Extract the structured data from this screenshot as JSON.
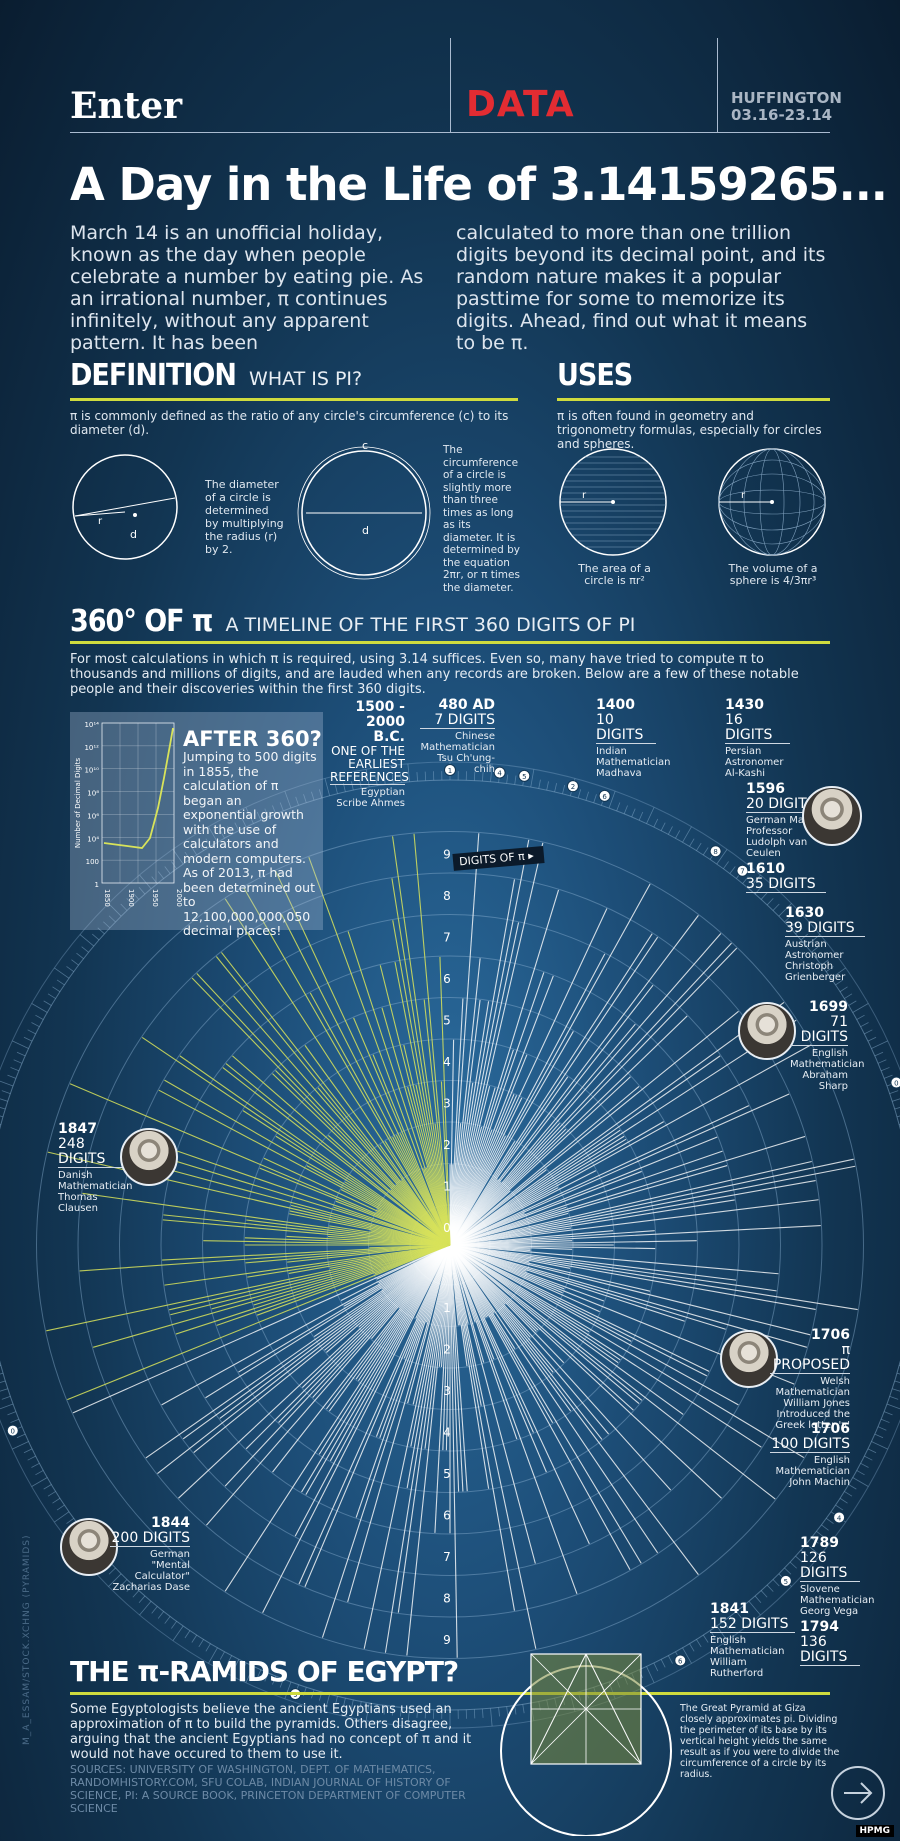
{
  "header": {
    "brand_left": "Enter",
    "brand_center": "DATA",
    "brand_right_1": "HUFFINGTON",
    "brand_right_2": "03.16-23.14"
  },
  "title": "A Day in the Life of 3.14159265...",
  "intro_left": "March 14 is an unofficial holiday, known as the day when people celebrate a number by eating pie. As an irrational number, π continues infinitely, without any apparent pattern. It has been",
  "intro_right": "calculated to more than one trillion digits beyond its decimal point, and its random nature makes it a popular pasttime for some to memorize its digits. Ahead, find out what it means to be π.",
  "definition": {
    "head": "DEFINITION",
    "sub": "WHAT IS PI?",
    "text": "π is commonly defined as the ratio of any circle's circumference (c) to its diameter (d).",
    "diameter_text": "The diameter of a circle is determined by multiplying the radius (r) by 2.",
    "circumference_text": "The circumference of a circle is slightly more than three times as long as its diameter. It is determined by the equation 2πr, or π times the diameter.",
    "label_r": "r",
    "label_d": "d",
    "label_c": "c"
  },
  "uses": {
    "head": "USES",
    "text": "π is often found in geometry and trigonometry formulas, especially for circles and spheres.",
    "area_text": "The area of a circle is πr²",
    "volume_text": "The volume of a sphere is 4/3πr³",
    "label_r": "r"
  },
  "timeline": {
    "head": "360° OF π",
    "sub": "A TIMELINE OF THE FIRST 360 DIGITS OF PI",
    "text": "For most calculations in which π is required, using 3.14 suffices. Even so, many have tried to compute π to thousands and millions of digits, and are lauded when any records are broken. Below are a few of these notable people and their discoveries within the first 360 digits.",
    "digits_label": "DIGITS OF π",
    "ring_digits_top": [
      "9",
      "8",
      "7",
      "6",
      "5",
      "4",
      "3",
      "2",
      "1",
      "0"
    ],
    "ring_digits_bottom": [
      "1",
      "2",
      "3",
      "4",
      "5",
      "6",
      "7",
      "8",
      "9"
    ]
  },
  "after360": {
    "head": "AFTER 360?",
    "text": "Jumping to 500 digits in 1855, the calculation of π began an exponential growth with the use of calculators and modern computers. As of 2013, π had been determined out to 12,100,000,000,050 decimal places!",
    "y_axis_label": "Number of Decimal Digits",
    "y_ticks": [
      "10¹⁴",
      "10¹²",
      "10¹⁰",
      "10⁸",
      "10⁶",
      "10⁴",
      "100",
      "1"
    ],
    "x_ticks": [
      "1850",
      "1900",
      "1950",
      "2000"
    ]
  },
  "annotations": {
    "a1": {
      "year": "1500 -",
      "year2": "2000 B.C.",
      "digits": "ONE OF THE EARLIEST REFERENCES",
      "desc": "Egyptian Scribe Ahmes"
    },
    "a2": {
      "year": "480 AD",
      "digits": "7 DIGITS",
      "desc": "Chinese Mathematician Tsu Ch'ung-chih"
    },
    "a3": {
      "year": "1400",
      "digits": "10 DIGITS",
      "desc": "Indian Mathematician Madhava"
    },
    "a4": {
      "year": "1430",
      "digits": "16 DIGITS",
      "desc": "Persian Astronomer Al-Kashi"
    },
    "a5": {
      "year": "1596",
      "digits": "20 DIGITS",
      "desc": "German Math Professor Ludolph van Ceulen"
    },
    "a6": {
      "year": "1610",
      "digits": "35 DIGITS"
    },
    "a7": {
      "year": "1630",
      "digits": "39 DIGITS",
      "desc": "Austrian Astronomer Christoph Grienberger"
    },
    "a8": {
      "year": "1699",
      "digits": "71 DIGITS",
      "desc": "English Mathematician Abraham Sharp"
    },
    "a9": {
      "year": "1706",
      "digits": "π PROPOSED",
      "desc": "Welsh Mathematician William Jones Introduced the Greek letter 'π'"
    },
    "a10": {
      "year": "1706",
      "digits": "100 DIGITS",
      "desc": "English Mathematician John Machin"
    },
    "a11": {
      "year": "1789",
      "digits": "126 DIGITS",
      "desc": "Slovene Mathematician Georg Vega"
    },
    "a12": {
      "year": "1794",
      "digits": "136 DIGITS"
    },
    "a13": {
      "year": "1841",
      "digits": "152 DIGITS",
      "desc": "English Mathematician William Rutherford"
    },
    "a14": {
      "year": "1844",
      "digits": "200 DIGITS",
      "desc": "German \"Mental Calculator\" Zacharias Dase"
    },
    "a15": {
      "year": "1847",
      "digits": "248 DIGITS",
      "desc": "Danish Mathematician Thomas Clausen"
    }
  },
  "marker_numbers": [
    "1",
    "4",
    "5",
    "2",
    "6",
    "8",
    "7",
    "0",
    "0",
    "4",
    "5",
    "6",
    "9",
    "0"
  ],
  "pyramids": {
    "head": "THE π-RAMIDS OF EGYPT?",
    "text": "Some Egyptologists believe the ancient Egyptians used an approximation of π to build the pyramids. Others disagree, arguing that the ancient Egyptians had no concept of π and it would not have occured to them to use it.",
    "sources": "SOURCES: UNIVERSITY OF WASHINGTON, DEPT. OF MATHEMATICS, RANDOMHISTORY.COM, SFU COLAB, INDIAN JOURNAL OF HISTORY OF SCIENCE, PI: A SOURCE BOOK, PRINCETON DEPARTMENT OF COMPUTER SCIENCE",
    "great_pyramid": "The Great Pyramid at Giza closely approximates pi. Dividing the perimeter of its base by its vertical height yields the same result as if you were to divide the circumference of a circle by its radius."
  },
  "photo_credit": "M_A_ESSAM/STOCK.XCHNG (PYRAMIDS)",
  "footer_tag": "HPMG",
  "colors": {
    "accent_yellow": "#cfdb3e",
    "brand_red": "#e22c32",
    "background": "#123552"
  }
}
